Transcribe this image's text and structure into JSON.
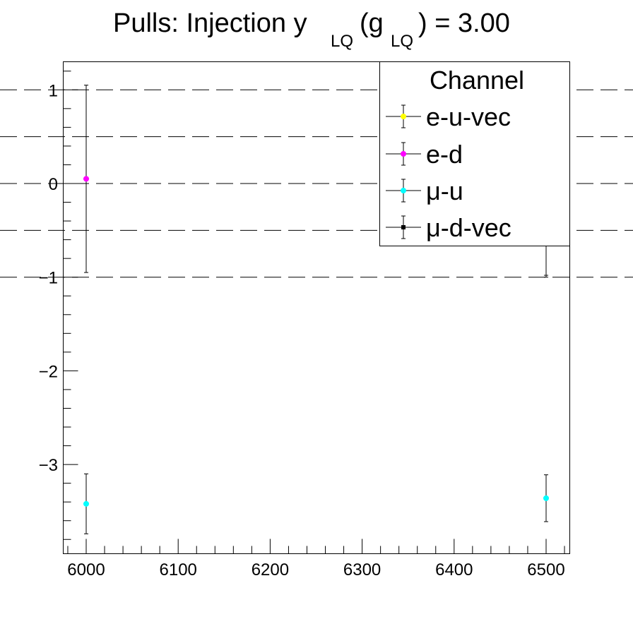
{
  "chart_data": {
    "type": "scatter",
    "title": {
      "main": "Pulls: Injection y",
      "sub1": "LQ",
      "mid": " (g",
      "sub2": "LQ",
      "tail": ") = 3.00"
    },
    "xlabel": "",
    "ylabel": "",
    "xlim": [
      5975,
      6525
    ],
    "ylim": [
      -3.92,
      1.3
    ],
    "x_ticks": [
      6000,
      6100,
      6200,
      6300,
      6400,
      6500
    ],
    "x_tick_labels": [
      "6000",
      "6100",
      "6200",
      "6300",
      "6400",
      "6500"
    ],
    "y_ticks": [
      -3,
      -2,
      -1,
      0,
      1
    ],
    "y_tick_labels": [
      "−3",
      "−2",
      "−1",
      "0",
      "1"
    ],
    "reference_lines": [
      1,
      0.5,
      0,
      -0.5,
      -1
    ],
    "grid": false,
    "legend": {
      "title": "Channel",
      "placement": "top-right"
    },
    "series": [
      {
        "name": "e-u-vec",
        "color": "#ffff00",
        "marker": "circle",
        "points": [
          {
            "x": 6500,
            "y": -0.5,
            "err": 0.5
          }
        ]
      },
      {
        "name": "e-d",
        "color": "#ff00ff",
        "marker": "circle",
        "points": [
          {
            "x": 6000,
            "y": 0.05,
            "err": 1.0
          }
        ]
      },
      {
        "name": "μ-u",
        "color": "#00ffff",
        "marker": "circle",
        "points": [
          {
            "x": 6000,
            "y": -3.42,
            "err": 0.32
          },
          {
            "x": 6500,
            "y": -3.36,
            "err": 0.25
          }
        ]
      },
      {
        "name": "μ-d-vec",
        "color": "#000000",
        "marker": "square",
        "points": [
          {
            "x": 6500,
            "y": -0.5,
            "err": 0.48
          }
        ]
      }
    ]
  }
}
